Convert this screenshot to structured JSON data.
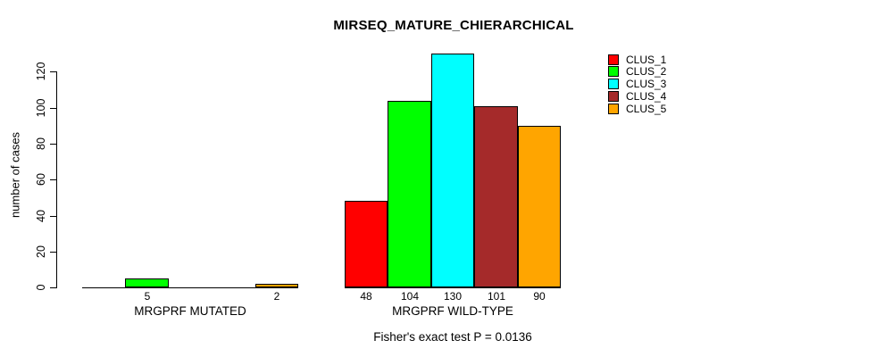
{
  "chart_data": {
    "type": "bar",
    "title": "MIRSEQ_MATURE_CHIERARCHICAL",
    "ylabel": "number of cases",
    "subtitle": "Fisher's exact test P = 0.0136",
    "categories": [
      "MRGPRF MUTATED",
      "MRGPRF WILD-TYPE"
    ],
    "series": [
      {
        "name": "CLUS_1",
        "color": "#FF0000",
        "values": [
          0,
          48
        ]
      },
      {
        "name": "CLUS_2",
        "color": "#00FF00",
        "values": [
          5,
          104
        ]
      },
      {
        "name": "CLUS_3",
        "color": "#00FFFF",
        "values": [
          0,
          130
        ]
      },
      {
        "name": "CLUS_4",
        "color": "#A52A2A",
        "values": [
          0,
          101
        ]
      },
      {
        "name": "CLUS_5",
        "color": "#FFA500",
        "values": [
          2,
          90
        ]
      }
    ],
    "bar_value_labels": {
      "MRGPRF MUTATED": [
        "",
        "5",
        "",
        "",
        "2"
      ],
      "MRGPRF WILD-TYPE": [
        "48",
        "104",
        "130",
        "101",
        "90"
      ]
    },
    "y_ticks": [
      0,
      20,
      40,
      60,
      80,
      100,
      120
    ],
    "ylim": [
      0,
      130
    ],
    "grid": false,
    "legend_position": "top-right",
    "colors": {
      "axis": "#000000",
      "background": "#FFFFFF",
      "text": "#000000"
    }
  }
}
